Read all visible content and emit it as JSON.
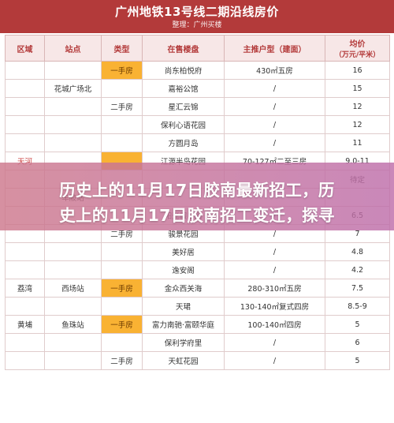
{
  "header": {
    "title": "广州地铁13号线二期沿线房价",
    "subtitle": "整理：广州买楼"
  },
  "columns": [
    "区域",
    "站点",
    "类型",
    "在售楼盘",
    "主推户型（建面）",
    "均价\n（万元/平米）"
  ],
  "col_price": "均价",
  "col_price_unit": "（万元/平米）",
  "rows": [
    {
      "district": "",
      "station": "",
      "type": "一手房",
      "estate": "尚东柏悦府",
      "layout": "430㎡五房",
      "price": "16"
    },
    {
      "district": "",
      "station": "花城广场北",
      "type": "",
      "estate": "嘉裕公馆",
      "layout": "/",
      "price": "15"
    },
    {
      "district": "",
      "station": "",
      "type": "二手房",
      "estate": "星汇云锦",
      "layout": "/",
      "price": "12"
    },
    {
      "district": "",
      "station": "",
      "type": "",
      "estate": "保利心语花园",
      "layout": "/",
      "price": "12"
    },
    {
      "district": "",
      "station": "",
      "type": "",
      "estate": "方圆月岛",
      "layout": "/",
      "price": "11"
    },
    {
      "district": "天河",
      "station": "",
      "type": "",
      "estate": "江源半岛花园",
      "layout": "70-127㎡二至三房",
      "price": "9.0-11"
    },
    {
      "district": "",
      "station": "",
      "type": "",
      "estate": "",
      "layout": "",
      "price": "待定"
    },
    {
      "district": "",
      "station": "车陂站",
      "type": "",
      "estate": "",
      "layout": "",
      "price": ""
    },
    {
      "district": "",
      "station": "",
      "type": "",
      "estate": "阳光假日园",
      "layout": "/",
      "price": "6.5"
    },
    {
      "district": "",
      "station": "",
      "type": "二手房",
      "estate": "骏景花园",
      "layout": "/",
      "price": "7"
    },
    {
      "district": "",
      "station": "",
      "type": "",
      "estate": "美好居",
      "layout": "/",
      "price": "4.8"
    },
    {
      "district": "",
      "station": "",
      "type": "",
      "estate": "逸安阁",
      "layout": "/",
      "price": "4.2"
    },
    {
      "district": "荔湾",
      "station": "西场站",
      "type": "一手房",
      "estate": "金众西关海",
      "layout": "280-310㎡五房",
      "price": "7.5"
    },
    {
      "district": "",
      "station": "",
      "type": "",
      "estate": "天珺",
      "layout": "130-140㎡复式四房",
      "price": "8.5-9"
    },
    {
      "district": "黄埔",
      "station": "鱼珠站",
      "type": "一手房",
      "estate": "富力南驰·富颐华庭",
      "layout": "100-140㎡四房",
      "price": "5"
    },
    {
      "district": "",
      "station": "",
      "type": "",
      "estate": "保利学府里",
      "layout": "/",
      "price": "6"
    },
    {
      "district": "",
      "station": "",
      "type": "二手房",
      "estate": "天虹花园",
      "layout": "/",
      "price": "5"
    }
  ],
  "overlay": {
    "line1": "历史上的11月17日胶南最新招工，历",
    "line2": "史上的11月17日胶南招工变迁，探寻"
  },
  "colors": {
    "header_bg": "#b33a3a",
    "highlight": "#f9b233",
    "overlay": "#c878a0"
  }
}
